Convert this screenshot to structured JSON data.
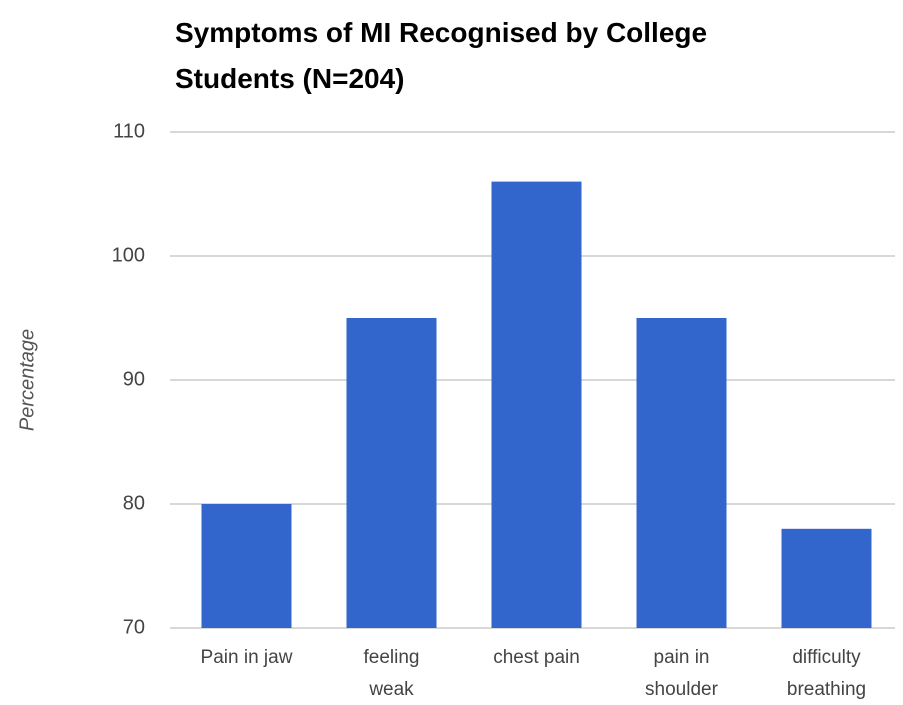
{
  "chart_data": {
    "type": "bar",
    "title": "Symptoms of MI Recognised by College Students (N=204)",
    "y_label": "Percentage",
    "categories": [
      "Pain in jaw",
      "feeling weak",
      "chest pain",
      "pain in shoulder",
      "difficulty breathing"
    ],
    "values": [
      80,
      95,
      106,
      95,
      78
    ],
    "color": "#3366cc",
    "ylim": [
      70,
      110
    ],
    "yticks": [
      70,
      80,
      90,
      100,
      110
    ],
    "grid": true
  }
}
